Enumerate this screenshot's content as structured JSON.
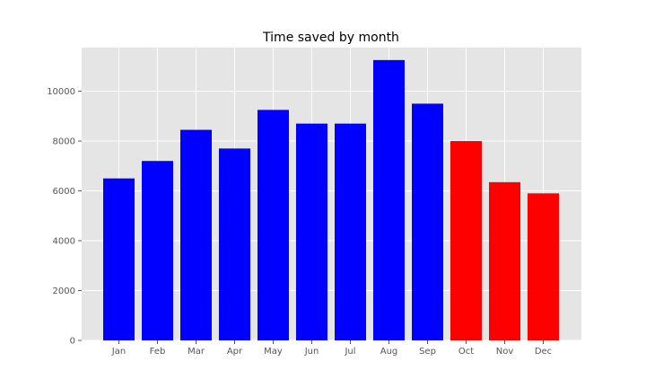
{
  "chart_data": {
    "type": "bar",
    "title": "Time saved by month",
    "xlabel": "",
    "ylabel": "",
    "categories": [
      "Jan",
      "Feb",
      "Mar",
      "Apr",
      "May",
      "Jun",
      "Jul",
      "Aug",
      "Sep",
      "Oct",
      "Nov",
      "Dec"
    ],
    "values": [
      6500,
      7200,
      8450,
      7700,
      9250,
      8700,
      8700,
      11250,
      9500,
      8000,
      6350,
      5900
    ],
    "bar_colors": [
      "#0000ff",
      "#0000ff",
      "#0000ff",
      "#0000ff",
      "#0000ff",
      "#0000ff",
      "#0000ff",
      "#0000ff",
      "#0000ff",
      "#ff0000",
      "#ff0000",
      "#ff0000"
    ],
    "ylim": [
      0,
      11750
    ],
    "yticks": [
      0,
      2000,
      4000,
      6000,
      8000,
      10000
    ],
    "ytick_labels": [
      "0",
      "2000",
      "4000",
      "6000",
      "8000",
      "10000"
    ],
    "grid": true,
    "style": {
      "plot_background": "#e5e5e5",
      "grid_color": "#ffffff"
    }
  }
}
